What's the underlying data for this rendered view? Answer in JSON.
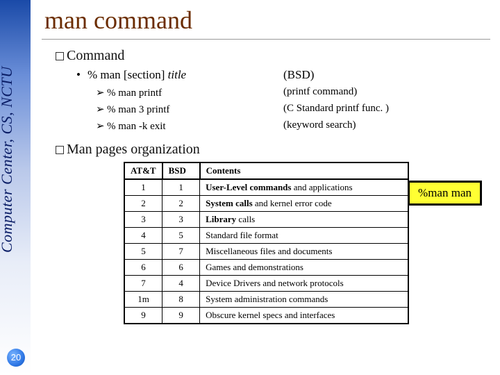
{
  "sidebar": {
    "text": "Computer Center, CS, NCTU",
    "page_number": "20"
  },
  "title": "man command",
  "sections": {
    "command": {
      "heading": "Command",
      "usage_left": "% man [section] ",
      "usage_title": "title",
      "usage_right": "(BSD)",
      "examples": [
        {
          "cmd": "% man printf",
          "desc": "(printf command)"
        },
        {
          "cmd": "% man 3 printf",
          "desc": "(C Standard printf func. )"
        },
        {
          "cmd": "% man -k exit",
          "desc": "(keyword search)"
        }
      ]
    },
    "manpages": {
      "heading": "Man pages organization"
    }
  },
  "badge": "%man man",
  "table": {
    "columns": [
      "AT&T",
      "BSD",
      "Contents"
    ],
    "rows": [
      [
        "1",
        "1",
        {
          "bold": "User-Level commands",
          "rest": " and applications"
        }
      ],
      [
        "2",
        "2",
        {
          "bold": "System calls",
          "rest": " and kernel error code"
        }
      ],
      [
        "3",
        "3",
        {
          "bold": "Library",
          "rest": " calls"
        }
      ],
      [
        "4",
        "5",
        {
          "bold": "",
          "rest": "Standard file format"
        }
      ],
      [
        "5",
        "7",
        {
          "bold": "",
          "rest": "Miscellaneous files and documents"
        }
      ],
      [
        "6",
        "6",
        {
          "bold": "",
          "rest": "Games and demonstrations"
        }
      ],
      [
        "7",
        "4",
        {
          "bold": "",
          "rest": "Device Drivers and network protocols"
        }
      ],
      [
        "1m",
        "8",
        {
          "bold": "",
          "rest": "System administration commands"
        }
      ],
      [
        "9",
        "9",
        {
          "bold": "",
          "rest": "Obscure kernel specs and interfaces"
        }
      ]
    ]
  },
  "colors": {
    "title_color": "#6b2c00",
    "badge_bg": "#ffff33",
    "sidebar_top": "#1a4aa8"
  }
}
